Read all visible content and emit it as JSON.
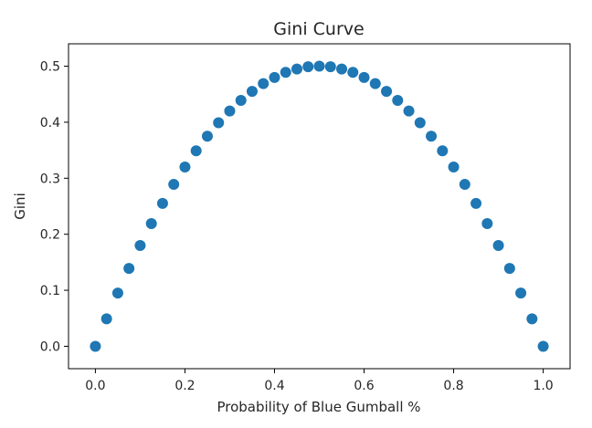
{
  "chart_data": {
    "type": "scatter",
    "title": "Gini Curve",
    "xlabel": "Probability of Blue Gumball %",
    "ylabel": "Gini",
    "xlim": [
      -0.06,
      1.06
    ],
    "ylim": [
      -0.04,
      0.54
    ],
    "x_ticks": [
      0.0,
      0.2,
      0.4,
      0.6,
      0.8,
      1.0
    ],
    "x_tick_labels": [
      "0.0",
      "0.2",
      "0.4",
      "0.6",
      "0.8",
      "1.0"
    ],
    "y_ticks": [
      0.0,
      0.1,
      0.2,
      0.3,
      0.4,
      0.5
    ],
    "y_tick_labels": [
      "0.0",
      "0.1",
      "0.2",
      "0.3",
      "0.4",
      "0.5"
    ],
    "grid": false,
    "legend": "none",
    "series": [
      {
        "color": "#1f77b4",
        "x": [
          0.0,
          0.025,
          0.05,
          0.075,
          0.1,
          0.125,
          0.15,
          0.175,
          0.2,
          0.225,
          0.25,
          0.275,
          0.3,
          0.325,
          0.35,
          0.375,
          0.4,
          0.425,
          0.45,
          0.475,
          0.5,
          0.525,
          0.55,
          0.575,
          0.6,
          0.625,
          0.65,
          0.675,
          0.7,
          0.725,
          0.75,
          0.775,
          0.8,
          0.825,
          0.85,
          0.875,
          0.9,
          0.925,
          0.95,
          0.975,
          1.0
        ],
        "y": [
          0.0,
          0.049,
          0.095,
          0.139,
          0.18,
          0.219,
          0.255,
          0.289,
          0.32,
          0.349,
          0.375,
          0.399,
          0.42,
          0.439,
          0.455,
          0.469,
          0.48,
          0.489,
          0.495,
          0.499,
          0.5,
          0.499,
          0.495,
          0.489,
          0.48,
          0.469,
          0.455,
          0.439,
          0.42,
          0.399,
          0.375,
          0.349,
          0.32,
          0.289,
          0.255,
          0.219,
          0.18,
          0.139,
          0.095,
          0.049,
          0.0
        ]
      }
    ]
  }
}
